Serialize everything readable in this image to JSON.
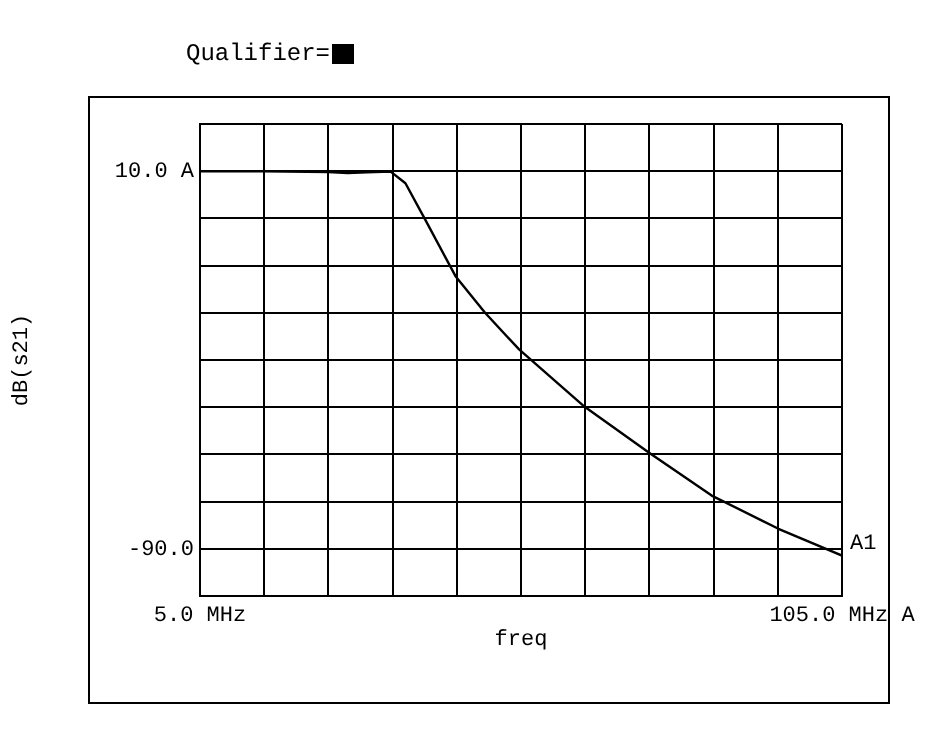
{
  "chart_data": {
    "type": "line",
    "title": "Qualifier=",
    "xlabel": "freq",
    "ylabel": "dB(s21)",
    "x": [
      5,
      15,
      25,
      28,
      31,
      34.7,
      37,
      40.1,
      44.8,
      49.4,
      54.7,
      64.7,
      74.9,
      84.7,
      95.1,
      105
    ],
    "series": [
      {
        "color": "#000000",
        "values": [
          10,
          10,
          9.8,
          9.5,
          9.7,
          9.9,
          6.8,
          -2.9,
          -17.8,
          -27.5,
          -37.2,
          -52.1,
          -64.5,
          -75.9,
          -84.7,
          -91.8
        ]
      }
    ],
    "xlim": [
      5,
      105
    ],
    "xticks": [
      {
        "value": 5,
        "label": "5.0 MHz"
      },
      {
        "value": 15,
        "label": null
      },
      {
        "value": 25,
        "label": null
      },
      {
        "value": 35,
        "label": null
      },
      {
        "value": 45,
        "label": null
      },
      {
        "value": 55,
        "label": null
      },
      {
        "value": 65,
        "label": null
      },
      {
        "value": 75,
        "label": null
      },
      {
        "value": 85,
        "label": null
      },
      {
        "value": 95,
        "label": null
      },
      {
        "value": 105,
        "label": "105.0 MHz A"
      }
    ],
    "ylim": [
      -102.5,
      22.5
    ],
    "yticks": [
      {
        "value": -102.5,
        "label": null
      },
      {
        "value": -90,
        "label": "-90.0"
      },
      {
        "value": -77.5,
        "label": null
      },
      {
        "value": -65,
        "label": null
      },
      {
        "value": -52.5,
        "label": null
      },
      {
        "value": -40,
        "label": null
      },
      {
        "value": -27.5,
        "label": null
      },
      {
        "value": -15,
        "label": null
      },
      {
        "value": -2.5,
        "label": null
      },
      {
        "value": 10,
        "label": "10.0 A"
      },
      {
        "value": 22.5,
        "label": null
      }
    ],
    "annotations": [
      {
        "text": "A1",
        "x": 105,
        "y": -91.8
      }
    ],
    "grid": true,
    "legend": false,
    "marker": "none",
    "line_style": "solid"
  }
}
